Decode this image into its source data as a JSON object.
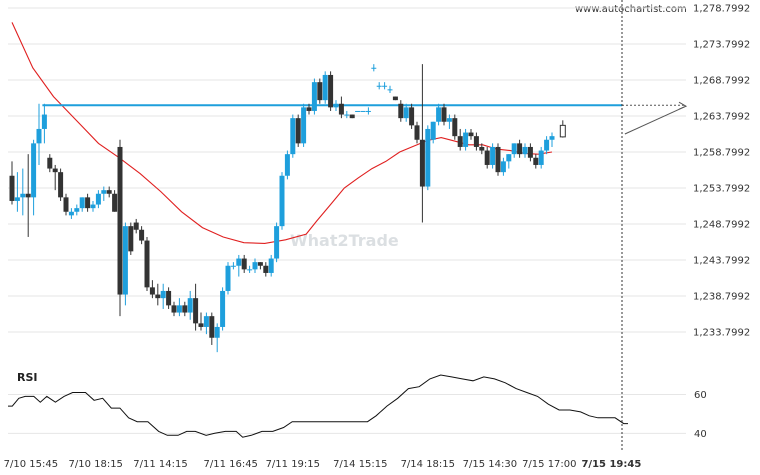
{
  "site": "www.autochartist.com",
  "watermark": "What2Trade",
  "colors": {
    "bull": "#1e9fdc",
    "bear": "#333333",
    "ma": "#e02020",
    "level": "#1e9fdc",
    "rsi": "#111111",
    "grid": "#e6e6e6"
  },
  "chart_data": [
    {
      "type": "candlestick",
      "price_axis": {
        "ticks": [
          "1,278.7992",
          "1,273.7992",
          "1,268.7992",
          "1,263.7992",
          "1,258.7992",
          "1,253.7992",
          "1,248.7992",
          "1,243.7992",
          "1,238.7992",
          "1,233.7992"
        ],
        "ylim": [
          1228.5,
          1279.5
        ]
      },
      "time_axis": {
        "labels": [
          "7/10 15:45",
          "7/10 18:15",
          "7/11 14:15",
          "7/11 16:45",
          "7/11 19:15",
          "7/14 15:15",
          "7/14 18:15",
          "7/15 14:30",
          "7/15 17:00",
          "7/15 19:45"
        ],
        "label_index": [
          3.5,
          15.5,
          27.5,
          40.5,
          52,
          64.5,
          77,
          88.5,
          99.5,
          111
        ]
      },
      "resistance_level": 1265.3,
      "projection": {
        "from_index": 114,
        "from_value": 1261.3,
        "to_index": 125,
        "to_value": 1265.3
      },
      "candles": [
        [
          1255.5,
          1257.5,
          1251.5,
          1252.0
        ],
        [
          1252.0,
          1256.0,
          1250.5,
          1252.5
        ],
        [
          1252.5,
          1256.5,
          1250.0,
          1253.0
        ],
        [
          1253.0,
          1258.5,
          1247.0,
          1252.5
        ],
        [
          1252.5,
          1260.5,
          1250.0,
          1260.0
        ],
        [
          1260.0,
          1265.5,
          1257.0,
          1262.0
        ],
        [
          1262.0,
          1265.5,
          1260.0,
          1264.0
        ],
        [
          1258.0,
          1258.5,
          1256.0,
          1256.5
        ],
        [
          1256.5,
          1257.0,
          1253.5,
          1256.0
        ],
        [
          1256.0,
          1256.5,
          1252.0,
          1252.5
        ],
        [
          1252.5,
          1253.0,
          1250.0,
          1250.5
        ],
        [
          1250.0,
          1251.0,
          1249.5,
          1250.5
        ],
        [
          1250.5,
          1251.5,
          1250.0,
          1251.0
        ],
        [
          1251.0,
          1252.5,
          1250.5,
          1252.5
        ],
        [
          1252.5,
          1253.0,
          1250.5,
          1251.0
        ],
        [
          1251.0,
          1252.0,
          1250.5,
          1251.5
        ],
        [
          1251.5,
          1253.5,
          1251.0,
          1253.0
        ],
        [
          1253.0,
          1254.0,
          1252.0,
          1253.5
        ],
        [
          1253.5,
          1254.0,
          1252.5,
          1253.0
        ],
        [
          1253.0,
          1253.5,
          1250.5,
          1250.5
        ],
        [
          1259.5,
          1260.5,
          1236.0,
          1239.0
        ],
        [
          1239.0,
          1249.0,
          1237.5,
          1248.5
        ],
        [
          1248.5,
          1249.0,
          1244.5,
          1245.0
        ],
        [
          1249.0,
          1249.5,
          1247.5,
          1248.0
        ],
        [
          1248.0,
          1248.5,
          1246.0,
          1246.5
        ],
        [
          1246.5,
          1247.0,
          1239.5,
          1240.0
        ],
        [
          1240.0,
          1241.0,
          1238.5,
          1239.0
        ],
        [
          1239.0,
          1240.5,
          1237.5,
          1238.5
        ],
        [
          1238.5,
          1240.5,
          1237.0,
          1239.5
        ],
        [
          1239.5,
          1240.0,
          1237.0,
          1237.5
        ],
        [
          1237.5,
          1238.0,
          1236.0,
          1236.5
        ],
        [
          1236.5,
          1238.5,
          1236.0,
          1237.5
        ],
        [
          1237.5,
          1238.0,
          1236.0,
          1236.5
        ],
        [
          1236.5,
          1239.5,
          1235.5,
          1238.5
        ],
        [
          1238.5,
          1240.5,
          1234.0,
          1235.0
        ],
        [
          1235.0,
          1236.5,
          1234.0,
          1234.5
        ],
        [
          1234.5,
          1236.5,
          1233.5,
          1236.0
        ],
        [
          1236.0,
          1236.5,
          1232.0,
          1233.0
        ],
        [
          1233.0,
          1235.0,
          1231.0,
          1234.5
        ],
        [
          1234.5,
          1240.0,
          1234.0,
          1239.5
        ],
        [
          1239.5,
          1243.5,
          1239.0,
          1243.0
        ],
        [
          1243.0,
          1243.5,
          1242.5,
          1243.0
        ],
        [
          1243.0,
          1244.5,
          1241.5,
          1244.0
        ],
        [
          1244.0,
          1244.5,
          1242.0,
          1242.5
        ],
        [
          1242.5,
          1243.0,
          1242.0,
          1242.5
        ],
        [
          1242.5,
          1244.0,
          1242.0,
          1243.5
        ],
        [
          1243.5,
          1243.5,
          1242.5,
          1243.0
        ],
        [
          1243.0,
          1243.5,
          1241.5,
          1242.0
        ],
        [
          1242.0,
          1244.5,
          1241.5,
          1244.0
        ],
        [
          1244.0,
          1249.0,
          1243.5,
          1248.5
        ],
        [
          1248.5,
          1256.0,
          1248.0,
          1255.5
        ],
        [
          1255.5,
          1259.0,
          1255.0,
          1258.5
        ],
        [
          1258.5,
          1264.0,
          1258.0,
          1263.5
        ],
        [
          1263.5,
          1264.0,
          1259.5,
          1260.0
        ],
        [
          1260.0,
          1265.5,
          1259.5,
          1265.0
        ],
        [
          1265.0,
          1265.5,
          1264.0,
          1264.5
        ],
        [
          1264.5,
          1269.0,
          1264.0,
          1268.5
        ],
        [
          1268.5,
          1269.0,
          1265.5,
          1266.0
        ],
        [
          1266.0,
          1270.0,
          1265.5,
          1269.5
        ],
        [
          1269.5,
          1270.0,
          1264.5,
          1265.0
        ],
        [
          1265.0,
          1266.0,
          1264.5,
          1265.5
        ],
        [
          1265.5,
          1266.5,
          1263.5,
          1264.0
        ],
        [
          1264.0,
          1264.5,
          1263.5,
          1264.0
        ],
        [
          1264.0,
          1264.0,
          1263.5,
          1263.5
        ],
        [
          1264.5,
          1264.5,
          1264.5,
          1264.5
        ],
        [
          1264.5,
          1264.5,
          1264.5,
          1264.5
        ],
        [
          1264.5,
          1265.0,
          1264.0,
          1264.5
        ],
        [
          1270.5,
          1271.0,
          1270.0,
          1270.5
        ],
        [
          1268.0,
          1268.5,
          1267.5,
          1268.0
        ],
        [
          1268.0,
          1268.5,
          1267.5,
          1268.0
        ],
        [
          1267.5,
          1268.0,
          1267.0,
          1267.5
        ],
        [
          1266.5,
          1266.5,
          1266.0,
          1266.0
        ],
        [
          1265.5,
          1266.0,
          1263.0,
          1263.5
        ],
        [
          1263.5,
          1265.5,
          1263.0,
          1265.0
        ],
        [
          1265.0,
          1265.5,
          1262.0,
          1262.5
        ],
        [
          1262.5,
          1263.0,
          1260.0,
          1260.5
        ],
        [
          1260.5,
          1271.0,
          1249.0,
          1254.0
        ],
        [
          1254.0,
          1262.5,
          1253.5,
          1262.0
        ],
        [
          1260.5,
          1263.0,
          1260.0,
          1263.0
        ],
        [
          1263.0,
          1265.5,
          1262.5,
          1265.0
        ],
        [
          1265.0,
          1265.5,
          1262.5,
          1263.0
        ],
        [
          1263.0,
          1264.0,
          1262.0,
          1263.5
        ],
        [
          1263.5,
          1264.0,
          1260.5,
          1261.0
        ],
        [
          1261.0,
          1262.0,
          1259.0,
          1259.5
        ],
        [
          1259.5,
          1262.0,
          1259.0,
          1261.5
        ],
        [
          1261.5,
          1262.0,
          1260.5,
          1261.0
        ],
        [
          1261.0,
          1261.5,
          1259.0,
          1259.5
        ],
        [
          1259.5,
          1260.0,
          1258.5,
          1259.0
        ],
        [
          1259.0,
          1259.5,
          1256.5,
          1257.0
        ],
        [
          1257.0,
          1260.0,
          1256.5,
          1259.5
        ],
        [
          1259.5,
          1260.0,
          1255.5,
          1256.0
        ],
        [
          1256.0,
          1258.0,
          1255.5,
          1257.5
        ],
        [
          1257.5,
          1258.5,
          1256.5,
          1258.5
        ],
        [
          1258.5,
          1260.0,
          1258.0,
          1260.0
        ],
        [
          1260.0,
          1260.5,
          1258.0,
          1258.5
        ],
        [
          1258.5,
          1260.0,
          1258.0,
          1259.5
        ],
        [
          1259.5,
          1260.0,
          1257.5,
          1258.0
        ],
        [
          1258.0,
          1258.5,
          1256.5,
          1257.0
        ],
        [
          1257.0,
          1259.5,
          1256.5,
          1259.0
        ],
        [
          1259.0,
          1261.0,
          1258.5,
          1260.5
        ],
        [
          1260.5,
          1261.5,
          1259.5,
          1261.0
        ]
      ],
      "ma": [
        [
          0,
          1276.8
        ],
        [
          6,
          1270.5
        ],
        [
          12,
          1266.5
        ],
        [
          18,
          1263.5
        ],
        [
          25,
          1260.0
        ],
        [
          31,
          1258.0
        ],
        [
          37,
          1255.8
        ],
        [
          43,
          1253.3
        ],
        [
          49,
          1250.5
        ],
        [
          55,
          1248.3
        ],
        [
          61,
          1247.0
        ],
        [
          67,
          1246.2
        ],
        [
          73,
          1246.1
        ],
        [
          79,
          1246.6
        ],
        [
          85,
          1247.4
        ],
        [
          88,
          1249.2
        ],
        [
          92,
          1251.5
        ],
        [
          96,
          1253.8
        ],
        [
          100,
          1255.2
        ],
        [
          104,
          1256.5
        ],
        [
          108,
          1257.5
        ],
        [
          112,
          1258.8
        ],
        [
          116,
          1259.6
        ],
        [
          120,
          1260.4
        ],
        [
          124,
          1260.8
        ],
        [
          128,
          1260.3
        ],
        [
          132,
          1259.8
        ],
        [
          136,
          1259.8
        ],
        [
          140,
          1259.2
        ],
        [
          144,
          1259.0
        ],
        [
          148,
          1258.6
        ],
        [
          152,
          1258.5
        ],
        [
          156,
          1258.8
        ]
      ],
      "ma_xmax": 156
    },
    {
      "type": "line",
      "title": "RSI",
      "ylim": [
        34,
        70
      ],
      "ticks": [
        60,
        40
      ],
      "points": [
        [
          0,
          54
        ],
        [
          2,
          54
        ],
        [
          5,
          58
        ],
        [
          8,
          59
        ],
        [
          12,
          59
        ],
        [
          15,
          56
        ],
        [
          18,
          59
        ],
        [
          22,
          56
        ],
        [
          26,
          59
        ],
        [
          30,
          61
        ],
        [
          36,
          61
        ],
        [
          40,
          57
        ],
        [
          44,
          58
        ],
        [
          48,
          53
        ],
        [
          52,
          53
        ],
        [
          56,
          48
        ],
        [
          60,
          46
        ],
        [
          65,
          46
        ],
        [
          70,
          41
        ],
        [
          74,
          39
        ],
        [
          79,
          39
        ],
        [
          83,
          41
        ],
        [
          87,
          41
        ],
        [
          92,
          39
        ],
        [
          96,
          40
        ],
        [
          101,
          41
        ],
        [
          106,
          41
        ],
        [
          109,
          38
        ],
        [
          113,
          39
        ],
        [
          118,
          41
        ],
        [
          123,
          41
        ],
        [
          128,
          43
        ],
        [
          132,
          46
        ],
        [
          138,
          46
        ],
        [
          142,
          46
        ],
        [
          146,
          46
        ],
        [
          150,
          46
        ],
        [
          154,
          46
        ],
        [
          158,
          46
        ],
        [
          163,
          46
        ],
        [
          167,
          46
        ],
        [
          171,
          49
        ],
        [
          176,
          54
        ],
        [
          181,
          58
        ],
        [
          186,
          63
        ],
        [
          191,
          64
        ],
        [
          196,
          68
        ],
        [
          201,
          70
        ],
        [
          206,
          69
        ],
        [
          211,
          68
        ],
        [
          216,
          67
        ],
        [
          221,
          69
        ],
        [
          226,
          68
        ],
        [
          231,
          66
        ],
        [
          236,
          63
        ],
        [
          241,
          61
        ],
        [
          246,
          59
        ],
        [
          251,
          55
        ],
        [
          256,
          52
        ],
        [
          261,
          52
        ],
        [
          266,
          51
        ],
        [
          270,
          49
        ],
        [
          274,
          48
        ],
        [
          278,
          48
        ],
        [
          282,
          48
        ],
        [
          286,
          45
        ],
        [
          288,
          45
        ]
      ],
      "xmax": 288
    }
  ]
}
